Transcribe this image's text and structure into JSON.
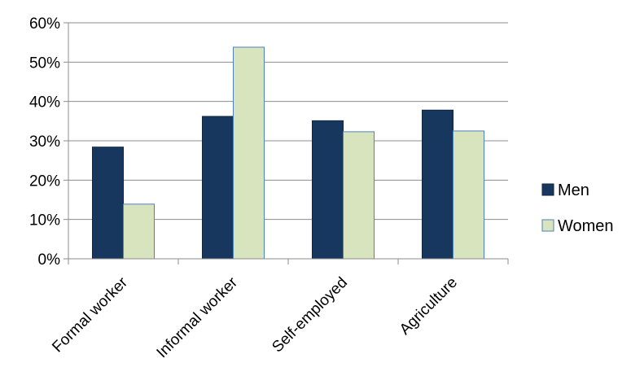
{
  "chart_data": {
    "type": "bar",
    "categories": [
      "Formal worker",
      "Informal worker",
      "Self-employed",
      "Agriculture"
    ],
    "series": [
      {
        "name": "Men",
        "values": [
          28.4,
          36.2,
          35.1,
          37.8
        ],
        "color": "#17375e",
        "stroke": "#0f2740"
      },
      {
        "name": "Women",
        "values": [
          13.9,
          53.8,
          32.3,
          32.5
        ],
        "color": "#d7e4bd",
        "stroke": "#4f81bd"
      }
    ],
    "ylim": [
      0,
      60
    ],
    "yticks": [
      "0%",
      "10%",
      "20%",
      "30%",
      "40%",
      "50%",
      "60%"
    ],
    "ytick_values": [
      0,
      10,
      20,
      30,
      40,
      50,
      60
    ],
    "grid": true,
    "legend": "right"
  }
}
